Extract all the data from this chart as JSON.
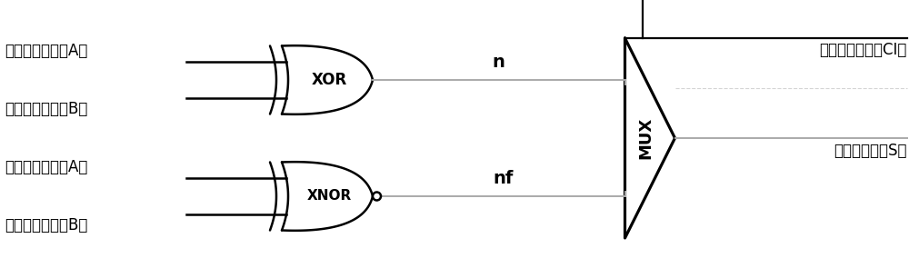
{
  "bg_color": "#ffffff",
  "line_color": "#000000",
  "gray_color": "#aaaaaa",
  "input_top_A": "第一输入信号（A）",
  "input_top_B": "第二输入信号（B）",
  "input_bot_A": "第一输入信号（A）",
  "input_bot_B": "第二输入信号（B）",
  "xor_label": "XOR",
  "xnor_label": "XNOR",
  "mux_label": "MUX",
  "n_label": "n",
  "nf_label": "nf",
  "ci_label": "第三输入信号（CI）",
  "s_label": "和输出信号（S）",
  "figsize": [
    10.0,
    3.06
  ],
  "dpi": 100
}
